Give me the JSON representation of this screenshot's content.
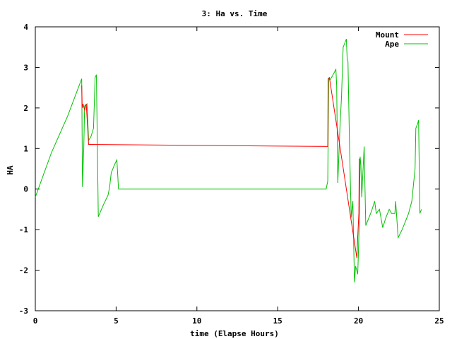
{
  "chart_data": {
    "type": "line",
    "title": "3: Ha vs. Time",
    "xlabel": "time (Elapse Hours)",
    "ylabel": "HA",
    "xlim": [
      0,
      25
    ],
    "ylim": [
      -3,
      4
    ],
    "xticks": [
      0,
      5,
      10,
      15,
      20,
      25
    ],
    "yticks": [
      -3,
      -2,
      -1,
      0,
      1,
      2,
      3,
      4
    ],
    "grid": false,
    "legend_position": "top-right",
    "series": [
      {
        "name": "Mount",
        "color": "#ff0000",
        "points": [
          [
            2.87,
            2.55
          ],
          [
            2.9,
            2.0
          ],
          [
            2.95,
            2.1
          ],
          [
            3.05,
            1.95
          ],
          [
            3.15,
            2.1
          ],
          [
            3.3,
            1.1
          ],
          [
            18.1,
            1.05
          ],
          [
            18.12,
            2.72
          ],
          [
            18.2,
            2.75
          ],
          [
            19.9,
            -1.7
          ],
          [
            19.95,
            -1.2
          ],
          [
            20.02,
            -0.6
          ],
          [
            20.05,
            0.75
          ]
        ]
      },
      {
        "name": "Ape",
        "color": "#00c000",
        "points": [
          [
            0.0,
            -0.2
          ],
          [
            1.0,
            0.9
          ],
          [
            2.0,
            1.8
          ],
          [
            2.87,
            2.72
          ],
          [
            2.92,
            0.05
          ],
          [
            3.0,
            1.0
          ],
          [
            3.05,
            2.05
          ],
          [
            3.2,
            2.1
          ],
          [
            3.3,
            1.2
          ],
          [
            3.45,
            1.3
          ],
          [
            3.6,
            1.5
          ],
          [
            3.7,
            2.75
          ],
          [
            3.78,
            2.82
          ],
          [
            3.9,
            -0.68
          ],
          [
            4.2,
            -0.4
          ],
          [
            4.5,
            -0.15
          ],
          [
            4.6,
            0.05
          ],
          [
            4.7,
            0.4
          ],
          [
            4.9,
            0.6
          ],
          [
            5.05,
            0.72
          ],
          [
            5.15,
            0.0
          ],
          [
            6.0,
            0.0
          ],
          [
            10.0,
            0.0
          ],
          [
            15.0,
            0.0
          ],
          [
            18.0,
            0.0
          ],
          [
            18.1,
            0.2
          ],
          [
            18.15,
            2.72
          ],
          [
            18.25,
            2.7
          ],
          [
            18.4,
            2.8
          ],
          [
            18.6,
            2.95
          ],
          [
            18.65,
            2.55
          ],
          [
            18.72,
            0.15
          ],
          [
            18.85,
            1.5
          ],
          [
            18.95,
            2.3
          ],
          [
            19.05,
            3.5
          ],
          [
            19.15,
            3.6
          ],
          [
            19.25,
            3.7
          ],
          [
            19.3,
            3.2
          ],
          [
            19.35,
            3.15
          ],
          [
            19.45,
            1.0
          ],
          [
            19.55,
            -0.7
          ],
          [
            19.65,
            -0.3
          ],
          [
            19.75,
            -2.3
          ],
          [
            19.82,
            -1.9
          ],
          [
            19.95,
            -2.1
          ],
          [
            20.0,
            -1.5
          ],
          [
            20.05,
            -0.8
          ],
          [
            20.1,
            0.8
          ],
          [
            20.15,
            0.6
          ],
          [
            20.2,
            -0.2
          ],
          [
            20.35,
            1.05
          ],
          [
            20.45,
            -0.9
          ],
          [
            20.55,
            -0.8
          ],
          [
            20.8,
            -0.55
          ],
          [
            21.0,
            -0.3
          ],
          [
            21.1,
            -0.6
          ],
          [
            21.3,
            -0.5
          ],
          [
            21.5,
            -0.95
          ],
          [
            21.7,
            -0.7
          ],
          [
            21.9,
            -0.5
          ],
          [
            22.05,
            -0.6
          ],
          [
            22.25,
            -0.6
          ],
          [
            22.3,
            -0.3
          ],
          [
            22.45,
            -1.2
          ],
          [
            22.7,
            -1.0
          ],
          [
            22.9,
            -0.8
          ],
          [
            23.1,
            -0.6
          ],
          [
            23.3,
            -0.3
          ],
          [
            23.5,
            0.5
          ],
          [
            23.55,
            1.5
          ],
          [
            23.65,
            1.6
          ],
          [
            23.72,
            1.7
          ],
          [
            23.8,
            -0.6
          ],
          [
            23.9,
            -0.5
          ]
        ]
      }
    ]
  }
}
